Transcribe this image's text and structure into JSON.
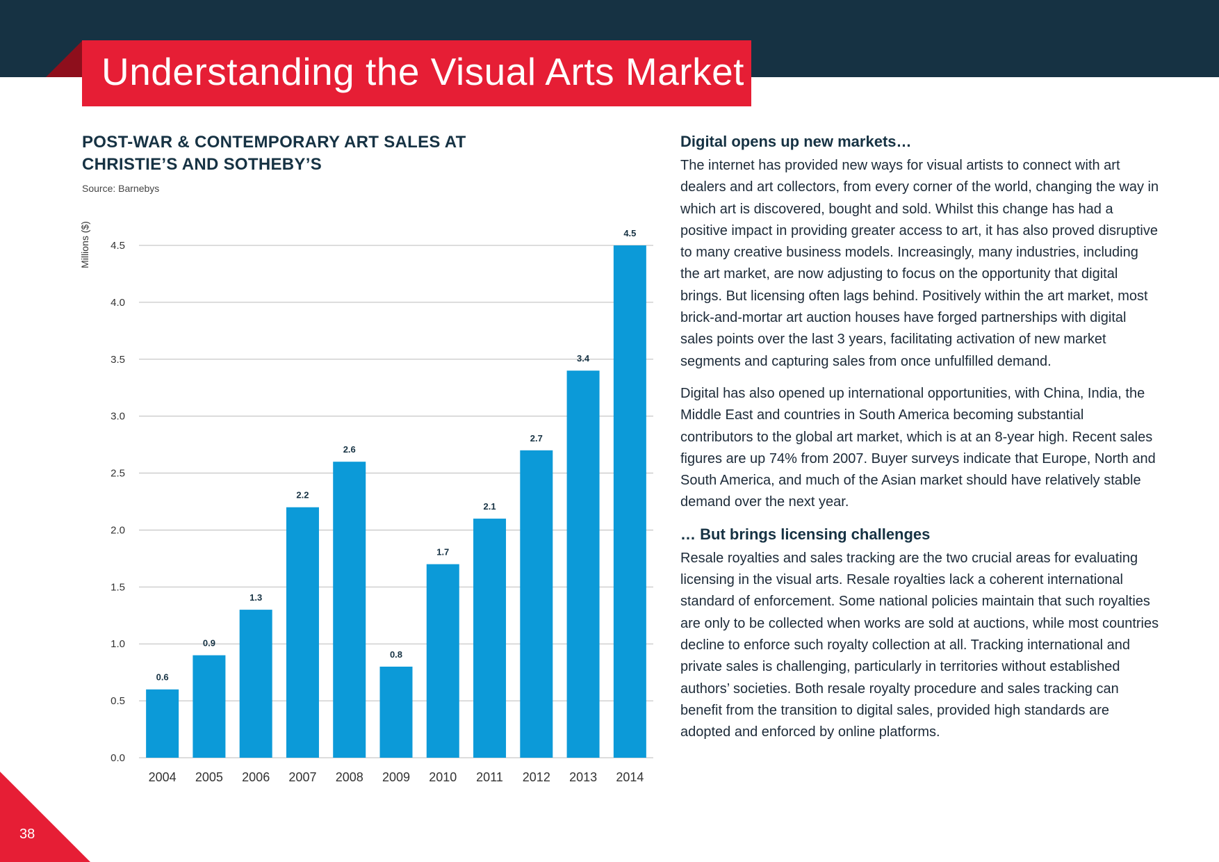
{
  "header": {
    "title": "Understanding the Visual Arts Market"
  },
  "left": {
    "chart_title": "POST-WAR & CONTEMPORARY ART SALES AT CHRISTIE’S AND SOTHEBY’S",
    "source": "Source: Barnebys"
  },
  "chart_data": {
    "type": "bar",
    "title": "POST-WAR & CONTEMPORARY ART SALES AT CHRISTIE’S AND SOTHEBY’S",
    "xlabel": "",
    "ylabel": "Millions ($)",
    "categories": [
      "2004",
      "2005",
      "2006",
      "2007",
      "2008",
      "2009",
      "2010",
      "2011",
      "2012",
      "2013",
      "2014"
    ],
    "values": [
      0.6,
      0.9,
      1.3,
      2.2,
      2.6,
      0.8,
      1.7,
      2.1,
      2.7,
      3.4,
      4.5
    ],
    "value_labels": [
      "0.6",
      "0.9",
      "1.3",
      "2.2",
      "2.6",
      "0.8",
      "1.7",
      "2.1",
      "2.7",
      "3.4",
      "4.5"
    ],
    "yticks": [
      "0.0",
      "0.5",
      "1.0",
      "1.5",
      "2.0",
      "2.5",
      "3.0",
      "3.5",
      "4.0",
      "4.5"
    ],
    "ylim": [
      0,
      4.5
    ],
    "grid": true,
    "bar_color": "#0c9ad8",
    "grid_color": "#bbbbbb"
  },
  "right": {
    "section1": {
      "heading": "Digital opens up new markets…",
      "p1": "The internet has provided new ways for visual artists to connect with art dealers and art collectors, from every corner of the world, changing the way in which art is discovered, bought and sold. Whilst this change has had a positive impact in providing greater access to art, it has also proved disruptive to many creative business models. Increasingly, many industries, including the art market, are now adjusting to focus on the opportunity that digital brings. But licensing often lags behind. Positively within the art market, most brick-and-mortar art auction houses have forged partnerships with digital sales points over the last 3 years, facilitating activation of new market segments and capturing sales from once unfulfilled demand.",
      "p2": "Digital has also opened up international opportunities, with China, India, the Middle East and countries in South America becoming substantial contributors to the global art market, which is at an 8-year high. Recent sales figures are up 74% from 2007. Buyer surveys indicate that Europe, North and South America, and much of the Asian market should have relatively stable demand over the next year."
    },
    "section2": {
      "heading": "… But brings licensing challenges",
      "p1": "Resale royalties and sales tracking are the two crucial areas for evaluating licensing in the visual arts. Resale royalties lack a coherent international standard of enforcement. Some national policies maintain that such royalties are only to be collected when works are sold at auctions, while most countries decline to enforce such royalty collection at all. Tracking international and private sales is challenging, particularly in territories without established authors’ societies. Both resale royalty procedure and sales tracking can benefit from the transition to digital sales, provided high standards are adopted and enforced by online platforms."
    }
  },
  "footer": {
    "page_number": "38"
  },
  "colors": {
    "navy": "#163243",
    "red": "#e61e35",
    "blue": "#0c9ad8"
  }
}
